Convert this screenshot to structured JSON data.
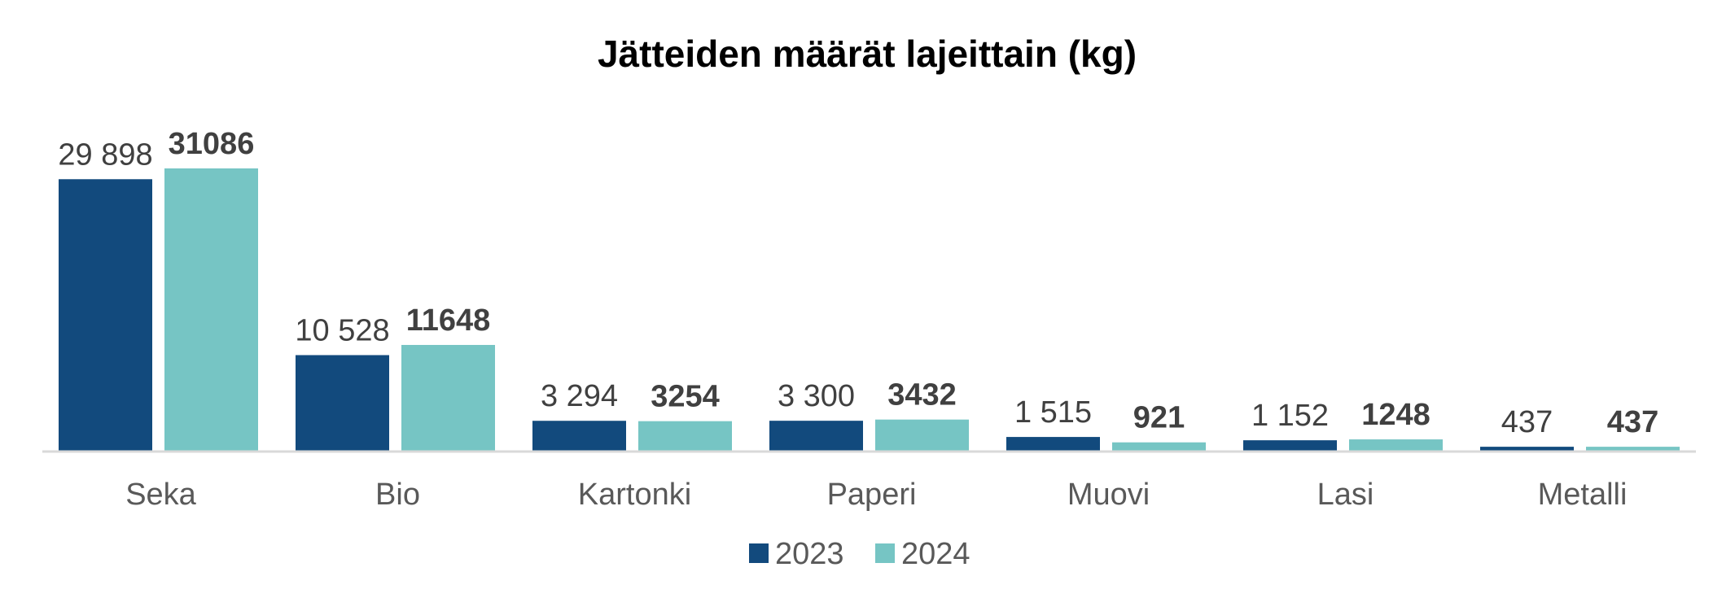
{
  "chart_data": {
    "type": "bar",
    "title": "Jätteiden määrät lajeittain (kg)",
    "xlabel": "",
    "ylabel": "",
    "categories": [
      "Seka",
      "Bio",
      "Kartonki",
      "Paperi",
      "Muovi",
      "Lasi",
      "Metalli"
    ],
    "series": [
      {
        "name": "2023",
        "color": "#124A7D",
        "values": [
          29898,
          10528,
          3294,
          3300,
          1515,
          1152,
          437
        ],
        "labels": [
          "29 898",
          "10 528",
          "3 294",
          "3 300",
          "1 515",
          "1 152",
          "437"
        ]
      },
      {
        "name": "2024",
        "color": "#76C5C4",
        "values": [
          31086,
          11648,
          3254,
          3432,
          921,
          1248,
          437
        ],
        "labels": [
          "31086",
          "11648",
          "3254",
          "3432",
          "921",
          "1248",
          "437"
        ]
      }
    ],
    "ylim": [
      0,
      31086
    ],
    "grid": false,
    "legend_position": "bottom"
  }
}
